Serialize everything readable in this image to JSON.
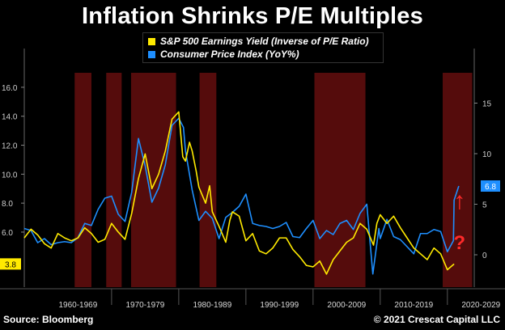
{
  "title": "Inflation Shrinks P/E Multiples",
  "source": "Source: Bloomberg",
  "copyright": "© 2021 Crescat Capital LLC",
  "colors": {
    "earnings_yield": "#ffea00",
    "earnings_yield_secondary": "#ffa41c",
    "cpi": "#1e8fff",
    "recession_band": "#5a0d0d",
    "background": "#000000"
  },
  "annotations": {
    "arrow": "↑",
    "question": "?"
  },
  "chart_data": {
    "type": "line",
    "title": "Inflation Shrinks P/E Multiples",
    "x_range": [
      1957,
      2024
    ],
    "y_left": {
      "min": 2.2,
      "max": 17.0,
      "ticks": [
        "6.0",
        "8.0",
        "10.0",
        "12.0",
        "14.0",
        "16.0"
      ],
      "tick_values": [
        6,
        8,
        10,
        12,
        14,
        16
      ]
    },
    "y_right": {
      "min": -3.2,
      "max": 18.0,
      "ticks": [
        "0",
        "5",
        "10",
        "15"
      ],
      "tick_values": [
        0,
        5,
        10,
        15
      ]
    },
    "x_decade_labels": [
      "1960-1969",
      "1970-1979",
      "1980-1989",
      "1990-1999",
      "2000-2009",
      "2010-2019",
      "2020-2029"
    ],
    "legend_position": "top-center",
    "shaded_periods": [
      [
        1964.5,
        1967.0
      ],
      [
        1969.2,
        1971.5
      ],
      [
        1972.9,
        1979.6
      ],
      [
        1983.1,
        1985.6
      ],
      [
        2000.2,
        2007.8
      ],
      [
        2019.3,
        2023.7
      ]
    ],
    "series": [
      {
        "name": "S&P 500 Earnings Yield (Inverse of P/E Ratio)",
        "axis": "left",
        "current_label": "3.8",
        "points": [
          [
            1957,
            5.6
          ],
          [
            1958,
            6.2
          ],
          [
            1959,
            5.8
          ],
          [
            1960,
            5.2
          ],
          [
            1961,
            4.9
          ],
          [
            1962,
            5.9
          ],
          [
            1963,
            5.6
          ],
          [
            1964,
            5.4
          ],
          [
            1965,
            5.6
          ],
          [
            1966,
            6.3
          ],
          [
            1967,
            5.9
          ],
          [
            1968,
            5.3
          ],
          [
            1969,
            5.5
          ],
          [
            1970,
            6.6
          ],
          [
            1971,
            6.0
          ],
          [
            1972,
            5.5
          ],
          [
            1973,
            7.3
          ],
          [
            1974,
            9.7
          ],
          [
            1975,
            11.4
          ],
          [
            1976,
            9.0
          ],
          [
            1977,
            10.0
          ],
          [
            1978,
            11.6
          ],
          [
            1979,
            13.8
          ],
          [
            1980,
            14.3
          ],
          [
            1980.6,
            11.2
          ],
          [
            1981,
            10.9
          ],
          [
            1981.6,
            12.2
          ],
          [
            1982,
            11.6
          ],
          [
            1982.6,
            10.2
          ],
          [
            1983,
            9.1
          ],
          [
            1984,
            8.0
          ],
          [
            1984.6,
            9.2
          ],
          [
            1985,
            7.4
          ],
          [
            1986,
            6.4
          ],
          [
            1987,
            5.3
          ],
          [
            1987.6,
            6.8
          ],
          [
            1988,
            7.4
          ],
          [
            1989,
            7.1
          ],
          [
            1990,
            5.4
          ],
          [
            1991,
            5.9
          ],
          [
            1992,
            4.7
          ],
          [
            1993,
            4.5
          ],
          [
            1994,
            4.9
          ],
          [
            1995,
            5.6
          ],
          [
            1996,
            5.6
          ],
          [
            1997,
            4.8
          ],
          [
            1998,
            4.3
          ],
          [
            1999,
            3.7
          ],
          [
            2000,
            3.6
          ],
          [
            2001,
            4.0
          ],
          [
            2002,
            3.1
          ],
          [
            2003,
            4.1
          ],
          [
            2004,
            4.7
          ],
          [
            2005,
            5.3
          ],
          [
            2006,
            5.6
          ],
          [
            2007,
            6.6
          ],
          [
            2008,
            6.2
          ],
          [
            2009,
            5.1
          ],
          [
            2009.5,
            6.6
          ],
          [
            2010,
            7.2
          ],
          [
            2011,
            6.6
          ],
          [
            2012,
            7.1
          ],
          [
            2013,
            6.3
          ],
          [
            2014,
            5.6
          ],
          [
            2015,
            4.9
          ],
          [
            2016,
            4.5
          ],
          [
            2017,
            4.1
          ],
          [
            2018,
            4.9
          ],
          [
            2019,
            4.5
          ],
          [
            2020,
            3.4
          ],
          [
            2021,
            3.8
          ]
        ]
      },
      {
        "name": "Consumer Price Index (YoY%)",
        "axis": "right",
        "current_label": "6.8",
        "points": [
          [
            1957,
            2.6
          ],
          [
            1958,
            2.4
          ],
          [
            1959,
            1.2
          ],
          [
            1960,
            1.6
          ],
          [
            1961,
            1.0
          ],
          [
            1962,
            1.2
          ],
          [
            1963,
            1.3
          ],
          [
            1964,
            1.2
          ],
          [
            1965,
            1.7
          ],
          [
            1966,
            3.1
          ],
          [
            1967,
            2.9
          ],
          [
            1968,
            4.5
          ],
          [
            1969,
            5.6
          ],
          [
            1970,
            5.8
          ],
          [
            1971,
            4.0
          ],
          [
            1972,
            3.3
          ],
          [
            1973,
            6.2
          ],
          [
            1974,
            11.5
          ],
          [
            1975,
            8.8
          ],
          [
            1976,
            5.2
          ],
          [
            1977,
            6.6
          ],
          [
            1978,
            8.9
          ],
          [
            1979,
            12.8
          ],
          [
            1980,
            13.5
          ],
          [
            1980.7,
            12.6
          ],
          [
            1981,
            10.3
          ],
          [
            1982,
            6.4
          ],
          [
            1983,
            3.4
          ],
          [
            1984,
            4.3
          ],
          [
            1985,
            3.6
          ],
          [
            1986,
            1.6
          ],
          [
            1987,
            3.7
          ],
          [
            1988,
            4.2
          ],
          [
            1989,
            4.8
          ],
          [
            1990,
            6.0
          ],
          [
            1991,
            3.1
          ],
          [
            1992,
            2.9
          ],
          [
            1993,
            2.8
          ],
          [
            1994,
            2.6
          ],
          [
            1995,
            2.8
          ],
          [
            1996,
            3.2
          ],
          [
            1997,
            1.8
          ],
          [
            1998,
            1.7
          ],
          [
            1999,
            2.6
          ],
          [
            2000,
            3.4
          ],
          [
            2001,
            1.6
          ],
          [
            2002,
            2.4
          ],
          [
            2003,
            2.0
          ],
          [
            2004,
            3.1
          ],
          [
            2005,
            3.4
          ],
          [
            2006,
            2.5
          ],
          [
            2007,
            4.1
          ],
          [
            2008,
            5.0
          ],
          [
            2008.9,
            -1.9
          ],
          [
            2009.8,
            2.6
          ],
          [
            2010,
            1.6
          ],
          [
            2011,
            3.5
          ],
          [
            2012,
            1.8
          ],
          [
            2013,
            1.5
          ],
          [
            2014,
            0.8
          ],
          [
            2015,
            0.1
          ],
          [
            2016,
            2.1
          ],
          [
            2017,
            2.1
          ],
          [
            2018,
            2.5
          ],
          [
            2019,
            2.3
          ],
          [
            2020,
            0.3
          ],
          [
            2020.9,
            1.4
          ],
          [
            2021,
            5.4
          ],
          [
            2021.7,
            6.8
          ]
        ]
      }
    ]
  }
}
